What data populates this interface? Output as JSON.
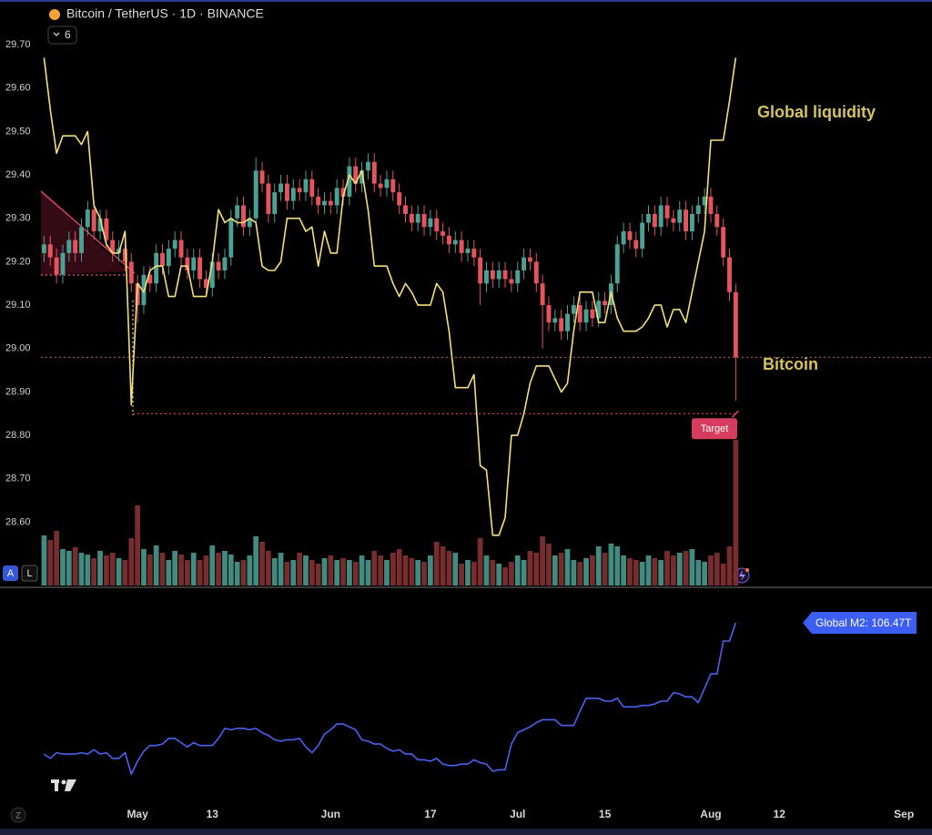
{
  "header": {
    "title": "Bitcoin / TetherUS · 1D · BINANCE",
    "indicators": 6
  },
  "toolbar": {
    "auto": "A",
    "log": "L",
    "timezone": "Z"
  },
  "chart_data": {
    "type": "candlestick",
    "categories": [
      null,
      null,
      null,
      null,
      null,
      null,
      null,
      null,
      null,
      null,
      null,
      null,
      null,
      null,
      null,
      "May",
      null,
      null,
      null,
      null,
      null,
      null,
      null,
      null,
      null,
      null,
      null,
      "13",
      null,
      null,
      null,
      null,
      null,
      null,
      null,
      null,
      null,
      null,
      null,
      null,
      null,
      null,
      null,
      null,
      null,
      null,
      "Jun",
      null,
      null,
      null,
      null,
      null,
      null,
      null,
      null,
      null,
      null,
      null,
      null,
      null,
      null,
      null,
      "17",
      null,
      null,
      null,
      null,
      null,
      null,
      null,
      null,
      null,
      null,
      null,
      null,
      null,
      "Jul",
      null,
      null,
      null,
      null,
      null,
      null,
      null,
      null,
      null,
      null,
      null,
      null,
      null,
      "15",
      null,
      null,
      null,
      null,
      null,
      null,
      null,
      null,
      null,
      null,
      null,
      null,
      null,
      null,
      null,
      null,
      "Aug",
      null,
      null,
      null,
      null,
      null,
      null,
      null,
      null,
      null,
      null,
      "12",
      null,
      null,
      null,
      null,
      null,
      null,
      null,
      null,
      null,
      null,
      null,
      null,
      null,
      null,
      null,
      null,
      null,
      null,
      null,
      "Sep",
      null,
      null,
      null,
      null
    ],
    "open": [
      29.22,
      29.24,
      29.21,
      29.17,
      29.22,
      29.25,
      29.22,
      29.28,
      29.32,
      29.27,
      29.3,
      29.25,
      29.22,
      29.23,
      29.2,
      29.15,
      29.1,
      29.17,
      29.15,
      29.22,
      29.19,
      29.23,
      29.25,
      29.21,
      29.18,
      29.21,
      29.16,
      29.14,
      29.2,
      29.18,
      29.21,
      29.3,
      29.33,
      29.28,
      29.3,
      29.41,
      29.38,
      29.31,
      29.36,
      29.38,
      29.34,
      29.37,
      29.36,
      29.39,
      29.35,
      29.33,
      29.34,
      29.33,
      29.37,
      29.35,
      29.42,
      29.38,
      29.41,
      29.43,
      29.38,
      29.37,
      29.39,
      29.36,
      29.33,
      29.31,
      29.29,
      29.31,
      29.28,
      29.3,
      29.27,
      29.26,
      29.24,
      29.25,
      29.22,
      29.23,
      29.21,
      29.15,
      29.18,
      29.16,
      29.18,
      29.16,
      29.15,
      29.18,
      29.21,
      29.2,
      29.15,
      29.1,
      29.06,
      29.07,
      29.04,
      29.08,
      29.1,
      29.06,
      29.09,
      29.07,
      29.11,
      29.1,
      29.15,
      29.24,
      29.27,
      29.25,
      29.23,
      29.29,
      29.31,
      29.28,
      29.33,
      29.3,
      29.29,
      29.32,
      29.27,
      29.31,
      29.33,
      29.35,
      29.31,
      29.28,
      29.21,
      29.13,
      null,
      null,
      null,
      null,
      null,
      null,
      null,
      null,
      null,
      null,
      null,
      null,
      null,
      null,
      null,
      null,
      null,
      null,
      null,
      null,
      null,
      null,
      null,
      null,
      null,
      null,
      null,
      null,
      null,
      null,
      null
    ],
    "high": [
      29.26,
      29.26,
      29.23,
      29.24,
      29.27,
      29.27,
      29.3,
      29.34,
      29.34,
      29.32,
      29.32,
      29.27,
      29.25,
      29.25,
      29.22,
      29.17,
      29.19,
      29.19,
      29.24,
      29.24,
      29.25,
      29.27,
      29.27,
      29.23,
      29.23,
      29.23,
      29.18,
      29.22,
      29.22,
      29.23,
      29.32,
      29.35,
      29.35,
      29.32,
      29.44,
      29.43,
      29.4,
      29.38,
      29.4,
      29.4,
      29.39,
      29.39,
      29.41,
      29.41,
      29.37,
      29.36,
      29.36,
      29.39,
      29.39,
      29.44,
      29.44,
      29.43,
      29.45,
      29.45,
      29.4,
      29.41,
      29.41,
      29.38,
      29.35,
      29.33,
      29.33,
      29.33,
      29.32,
      29.32,
      29.29,
      29.28,
      29.27,
      29.27,
      29.25,
      29.25,
      29.23,
      29.2,
      29.2,
      29.2,
      29.2,
      29.18,
      29.2,
      29.23,
      29.23,
      29.22,
      29.17,
      29.12,
      29.09,
      29.09,
      29.1,
      29.12,
      29.12,
      29.11,
      29.11,
      29.13,
      29.13,
      29.17,
      29.26,
      29.29,
      29.29,
      29.27,
      29.31,
      29.33,
      29.33,
      29.35,
      29.35,
      29.32,
      29.34,
      29.34,
      29.33,
      29.35,
      29.37,
      29.37,
      29.33,
      29.3,
      29.23,
      29.15,
      null,
      null,
      null,
      null,
      null,
      null,
      null,
      null,
      null,
      null,
      null,
      null,
      null,
      null,
      null,
      null,
      null,
      null,
      null,
      null,
      null,
      null,
      null,
      null,
      null,
      null,
      null,
      null,
      null,
      null,
      null
    ],
    "low": [
      29.2,
      29.19,
      29.15,
      29.15,
      29.2,
      29.2,
      29.2,
      29.26,
      29.25,
      29.25,
      29.23,
      29.2,
      29.2,
      29.18,
      29.13,
      29.06,
      29.08,
      29.13,
      29.13,
      29.17,
      29.17,
      29.21,
      29.19,
      29.16,
      29.16,
      29.14,
      29.12,
      29.12,
      29.16,
      29.16,
      29.19,
      29.28,
      29.26,
      29.26,
      29.28,
      29.36,
      29.29,
      29.29,
      29.34,
      29.32,
      29.32,
      29.34,
      29.34,
      29.33,
      29.31,
      29.31,
      29.31,
      29.31,
      29.33,
      29.33,
      29.36,
      29.36,
      29.39,
      29.36,
      29.35,
      29.35,
      29.34,
      29.31,
      29.29,
      29.27,
      29.27,
      29.26,
      29.26,
      29.25,
      29.24,
      29.22,
      29.22,
      29.2,
      29.2,
      29.19,
      29.1,
      29.13,
      29.14,
      29.14,
      29.14,
      29.13,
      29.13,
      29.16,
      29.18,
      29.13,
      29.0,
      29.04,
      29.04,
      29.02,
      29.02,
      29.06,
      29.04,
      29.04,
      29.05,
      29.05,
      29.08,
      29.08,
      29.13,
      29.22,
      29.23,
      29.21,
      29.21,
      29.27,
      29.26,
      29.26,
      29.28,
      29.27,
      29.27,
      29.25,
      29.25,
      29.29,
      29.31,
      29.29,
      29.26,
      29.19,
      29.11,
      28.88,
      null,
      null,
      null,
      null,
      null,
      null,
      null,
      null,
      null,
      null,
      null,
      null,
      null,
      null,
      null,
      null,
      null,
      null,
      null,
      null,
      null,
      null,
      null,
      null,
      null,
      null,
      null,
      null,
      null,
      null,
      null
    ],
    "close": [
      29.24,
      29.21,
      29.17,
      29.22,
      29.25,
      29.22,
      29.28,
      29.32,
      29.27,
      29.3,
      29.25,
      29.22,
      29.23,
      29.2,
      29.15,
      29.1,
      29.17,
      29.15,
      29.22,
      29.19,
      29.23,
      29.25,
      29.21,
      29.18,
      29.21,
      29.16,
      29.14,
      29.2,
      29.18,
      29.21,
      29.3,
      29.33,
      29.28,
      29.3,
      29.41,
      29.38,
      29.31,
      29.36,
      29.38,
      29.34,
      29.37,
      29.36,
      29.39,
      29.35,
      29.33,
      29.34,
      29.33,
      29.37,
      29.35,
      29.42,
      29.38,
      29.41,
      29.43,
      29.38,
      29.37,
      29.39,
      29.36,
      29.33,
      29.31,
      29.29,
      29.31,
      29.28,
      29.3,
      29.27,
      29.26,
      29.24,
      29.25,
      29.22,
      29.23,
      29.21,
      29.15,
      29.18,
      29.16,
      29.18,
      29.16,
      29.15,
      29.18,
      29.21,
      29.2,
      29.15,
      29.1,
      29.06,
      29.07,
      29.04,
      29.08,
      29.1,
      29.06,
      29.09,
      29.07,
      29.11,
      29.1,
      29.15,
      29.24,
      29.27,
      29.25,
      29.23,
      29.29,
      29.31,
      29.28,
      29.33,
      29.3,
      29.29,
      29.32,
      29.27,
      29.31,
      29.33,
      29.35,
      29.31,
      29.28,
      29.21,
      29.13,
      28.98,
      null,
      null,
      null,
      null,
      null,
      null,
      null,
      null,
      null,
      null,
      null,
      null,
      null,
      null,
      null,
      null,
      null,
      null,
      null,
      null,
      null,
      null,
      null,
      null,
      null,
      null,
      null,
      null,
      null,
      null,
      null
    ],
    "volume": [
      55,
      50,
      60,
      40,
      38,
      42,
      36,
      34,
      30,
      38,
      33,
      36,
      30,
      28,
      52,
      88,
      40,
      34,
      44,
      36,
      28,
      38,
      34,
      28,
      36,
      28,
      33,
      44,
      36,
      38,
      34,
      26,
      28,
      33,
      54,
      48,
      38,
      30,
      36,
      26,
      28,
      36,
      33,
      28,
      24,
      30,
      33,
      28,
      30,
      28,
      26,
      33,
      28,
      38,
      33,
      28,
      36,
      40,
      33,
      30,
      28,
      26,
      33,
      48,
      43,
      38,
      36,
      24,
      28,
      26,
      52,
      33,
      28,
      24,
      20,
      26,
      33,
      28,
      38,
      36,
      54,
      46,
      33,
      36,
      40,
      28,
      26,
      30,
      33,
      43,
      36,
      46,
      43,
      33,
      30,
      28,
      26,
      33,
      30,
      28,
      38,
      33,
      36,
      38,
      40,
      28,
      26,
      33,
      36,
      24,
      43,
      160,
      null,
      null,
      null,
      null,
      null,
      null,
      null,
      null,
      null,
      null,
      null,
      null,
      null,
      null,
      null,
      null,
      null,
      null,
      null,
      null,
      null,
      null,
      null,
      null,
      null,
      null,
      null,
      null,
      null,
      null,
      null
    ],
    "ylim": [
      28.45,
      29.74
    ],
    "yticks": [
      {
        "value": 28.6,
        "label": "28.60"
      },
      {
        "value": 28.7,
        "label": "28.70"
      },
      {
        "value": 28.8,
        "label": "28.80"
      },
      {
        "value": 28.9,
        "label": "28.90"
      },
      {
        "value": 29.0,
        "label": "29.00"
      },
      {
        "value": 29.1,
        "label": "29.10"
      },
      {
        "value": 29.2,
        "label": "29.20"
      },
      {
        "value": 29.3,
        "label": "29.30"
      },
      {
        "value": 29.4,
        "label": "29.40"
      },
      {
        "value": 29.5,
        "label": "29.50"
      },
      {
        "value": 29.6,
        "label": "29.60"
      },
      {
        "value": 29.7,
        "label": "29.70"
      }
    ],
    "grid": false,
    "up_color": "#4ba193",
    "down_color": "#e5535d",
    "volume_up_color": "#4a9a8e",
    "volume_down_color": "#843232",
    "price_label": "Bitcoin",
    "target": {
      "label": "Target",
      "value": 28.85
    },
    "series": [
      {
        "name": "Global liquidity",
        "type": "line",
        "pane": "main",
        "color": "#f3e07a",
        "values": [
          29.67,
          29.55,
          29.45,
          29.49,
          29.49,
          29.49,
          29.47,
          29.5,
          29.33,
          29.3,
          29.24,
          29.22,
          29.22,
          29.27,
          28.87,
          29.15,
          29.13,
          29.18,
          29.19,
          29.19,
          29.12,
          29.12,
          29.19,
          29.19,
          29.12,
          29.12,
          29.12,
          29.2,
          29.32,
          29.29,
          29.3,
          29.29,
          29.29,
          29.3,
          29.29,
          29.19,
          29.18,
          29.18,
          29.2,
          29.3,
          29.3,
          29.3,
          29.27,
          29.28,
          29.19,
          29.27,
          29.22,
          29.22,
          29.35,
          29.4,
          29.38,
          29.41,
          29.32,
          29.19,
          29.19,
          29.19,
          29.15,
          29.12,
          29.15,
          29.13,
          29.1,
          29.1,
          29.1,
          29.15,
          29.13,
          29.04,
          28.91,
          28.91,
          28.91,
          28.94,
          28.73,
          28.72,
          28.57,
          28.57,
          28.61,
          28.8,
          28.8,
          28.85,
          28.92,
          28.96,
          28.96,
          28.96,
          28.93,
          28.9,
          28.92,
          29.04,
          29.13,
          29.13,
          29.13,
          29.06,
          29.06,
          29.13,
          29.07,
          29.04,
          29.04,
          29.04,
          29.05,
          29.07,
          29.1,
          29.1,
          29.05,
          29.09,
          29.09,
          29.06,
          29.13,
          29.2,
          29.27,
          29.48,
          29.48,
          29.48,
          29.57,
          29.67,
          null,
          null,
          null,
          null,
          null,
          null,
          null,
          null,
          null,
          null,
          null,
          null,
          null,
          null,
          null,
          null,
          null,
          null,
          null,
          null,
          null,
          null,
          null,
          null,
          null,
          null,
          null,
          null,
          null,
          null,
          null
        ]
      },
      {
        "label": "Global M2: 106.47T",
        "type": "line",
        "pane": "lower",
        "color": "#4a63f0",
        "ylim": [
          94,
          108
        ],
        "values": [
          97.3,
          97.0,
          97.4,
          97.3,
          97.3,
          97.3,
          97.4,
          97.3,
          97.6,
          97.3,
          97.4,
          97.0,
          97.0,
          97.4,
          95.9,
          96.8,
          97.5,
          97.9,
          97.9,
          98.0,
          98.4,
          98.4,
          98.1,
          97.8,
          98.1,
          97.9,
          97.9,
          97.9,
          98.4,
          99.1,
          99.0,
          99.1,
          99.1,
          99.0,
          99.1,
          98.8,
          98.6,
          98.3,
          98.2,
          98.3,
          98.3,
          98.4,
          97.8,
          97.4,
          97.9,
          98.7,
          99.0,
          99.4,
          99.4,
          99.2,
          99.0,
          98.3,
          98.2,
          98.0,
          98.0,
          97.7,
          97.5,
          97.6,
          97.3,
          97.3,
          96.9,
          96.9,
          96.8,
          97.0,
          96.6,
          96.5,
          96.5,
          96.6,
          96.6,
          96.9,
          96.7,
          96.6,
          96.1,
          96.2,
          96.2,
          98.0,
          98.8,
          99.0,
          99.2,
          99.5,
          99.7,
          99.7,
          99.7,
          99.3,
          99.3,
          99.3,
          100.3,
          101.2,
          101.2,
          101.2,
          101.0,
          101.0,
          101.2,
          100.6,
          100.6,
          100.6,
          100.7,
          100.7,
          100.8,
          101.0,
          101.0,
          101.6,
          101.5,
          101.3,
          101.3,
          100.9,
          101.9,
          102.9,
          102.9,
          105.2,
          105.2,
          106.47,
          null,
          null,
          null,
          null,
          null,
          null,
          null,
          null,
          null,
          null,
          null,
          null,
          null,
          null,
          null,
          null,
          null,
          null,
          null,
          null,
          null,
          null,
          null,
          null,
          null,
          null,
          null,
          null,
          null,
          null,
          null
        ]
      }
    ]
  }
}
